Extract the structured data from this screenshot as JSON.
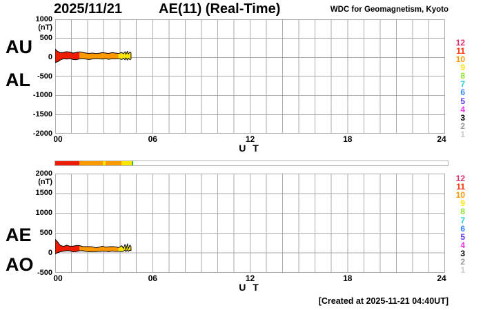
{
  "header": {
    "date": "2025/11/21",
    "title": "AE(11) (Real-Time)",
    "source": "WDC for Geomagnetism, Kyoto"
  },
  "footer": {
    "created_note": "[Created at 2025-11-21 04:40UT]"
  },
  "palette": {
    "grid": "#aaaaaa",
    "frame": "#aaaaaa",
    "outline": "#000000",
    "red": "#ee1c00",
    "orange": "#ff9900",
    "yellow": "#ffe600",
    "green": "#3db53d",
    "bar_border": "#b2b2b2",
    "bar_background": "#ffffff"
  },
  "legend_hours": [
    {
      "label": "12",
      "color": "#e62e6b"
    },
    {
      "label": "11",
      "color": "#ff2a00"
    },
    {
      "label": "10",
      "color": "#ff9900"
    },
    {
      "label": "9",
      "color": "#ffe600"
    },
    {
      "label": "8",
      "color": "#8ce62b"
    },
    {
      "label": "7",
      "color": "#2bcdd5"
    },
    {
      "label": "6",
      "color": "#2e86ff"
    },
    {
      "label": "5",
      "color": "#5c33f0"
    },
    {
      "label": "4",
      "color": "#f033f0"
    },
    {
      "label": "3",
      "color": "#000000"
    },
    {
      "label": "2",
      "color": "#999999"
    },
    {
      "label": "1",
      "color": "#cccccc"
    }
  ],
  "chart_data": {
    "type": "area",
    "title": "AE(11) (Real-Time) 2025/11/21",
    "xlabel": "U T",
    "x_ticks": [
      "00",
      "06",
      "12",
      "18",
      "24"
    ],
    "x_tick_hours": [
      0,
      6,
      12,
      18,
      24
    ],
    "x_range_hours": [
      0,
      24
    ],
    "grid": "on",
    "data_end_hour_ut": 4.67,
    "charts": [
      {
        "id": "top",
        "labels_left": [
          "AU",
          "AL"
        ],
        "unit": "(nT)",
        "ylim": [
          -2000,
          1000
        ],
        "y_ticks": [
          "1000",
          "500",
          "0",
          "-500",
          "-1000",
          "-1500",
          "-2000"
        ],
        "t_hours": [
          0,
          0.15,
          0.3,
          0.5,
          0.7,
          0.9,
          1.1,
          1.3,
          1.5,
          1.7,
          1.9,
          2.1,
          2.3,
          2.5,
          2.7,
          2.9,
          3.1,
          3.3,
          3.5,
          3.7,
          3.9,
          4.0,
          4.1,
          4.2,
          4.3,
          4.35,
          4.45,
          4.5,
          4.6,
          4.67
        ],
        "upper_nT": [
          215,
          160,
          125,
          130,
          150,
          140,
          115,
          130,
          145,
          130,
          115,
          105,
          115,
          100,
          110,
          125,
          115,
          105,
          125,
          115,
          105,
          115,
          130,
          95,
          150,
          80,
          160,
          90,
          140,
          120
        ],
        "lower_nT": [
          -135,
          -115,
          -70,
          -35,
          -45,
          -30,
          -55,
          -60,
          -40,
          -30,
          -45,
          -55,
          -40,
          -30,
          -35,
          -45,
          -30,
          -50,
          -35,
          -40,
          -30,
          -40,
          -55,
          -20,
          -65,
          -10,
          -70,
          -15,
          -60,
          -40
        ],
        "color_segments": [
          {
            "from": 0,
            "to": 1.5,
            "color": "red"
          },
          {
            "from": 1.5,
            "to": 3.9,
            "color": "orange"
          },
          {
            "from": 3.9,
            "to": 4.67,
            "color": "yellow"
          }
        ]
      },
      {
        "id": "bottom",
        "labels_left": [
          "AE",
          "AO"
        ],
        "unit": "(nT)",
        "ylim": [
          -500,
          2000
        ],
        "y_ticks": [
          "2000",
          "1500",
          "1000",
          "500",
          "0",
          "-500"
        ],
        "t_hours": [
          0,
          0.15,
          0.3,
          0.5,
          0.7,
          0.9,
          1.1,
          1.3,
          1.5,
          1.7,
          1.9,
          2.1,
          2.3,
          2.5,
          2.7,
          2.9,
          3.1,
          3.3,
          3.5,
          3.7,
          3.9,
          4.0,
          4.1,
          4.2,
          4.3,
          4.35,
          4.45,
          4.5,
          4.6,
          4.67
        ],
        "upper_nT": [
          345,
          280,
          195,
          165,
          195,
          170,
          170,
          190,
          185,
          160,
          160,
          160,
          155,
          130,
          145,
          170,
          145,
          155,
          160,
          155,
          135,
          155,
          185,
          115,
          215,
          90,
          230,
          105,
          200,
          160
        ],
        "lower_nT": [
          -25,
          5,
          30,
          45,
          55,
          55,
          30,
          35,
          55,
          55,
          40,
          30,
          35,
          35,
          40,
          45,
          45,
          30,
          50,
          40,
          40,
          40,
          35,
          45,
          75,
          35,
          80,
          40,
          70,
          60
        ],
        "color_segments": [
          {
            "from": 0,
            "to": 1.5,
            "color": "red"
          },
          {
            "from": 1.5,
            "to": 3.9,
            "color": "orange"
          },
          {
            "from": 3.9,
            "to": 4.67,
            "color": "yellow"
          }
        ]
      }
    ],
    "availability_bar": {
      "range_hours": [
        0,
        24
      ],
      "segments": [
        {
          "from": 0,
          "to": 1.46,
          "color": "red"
        },
        {
          "from": 1.46,
          "to": 2.93,
          "color": "orange"
        },
        {
          "from": 2.93,
          "to": 3.08,
          "color": "yellow"
        },
        {
          "from": 3.08,
          "to": 4.03,
          "color": "orange"
        },
        {
          "from": 4.03,
          "to": 4.67,
          "color": "yellow"
        },
        {
          "from": 4.67,
          "to": 4.78,
          "color": "green"
        }
      ]
    }
  }
}
